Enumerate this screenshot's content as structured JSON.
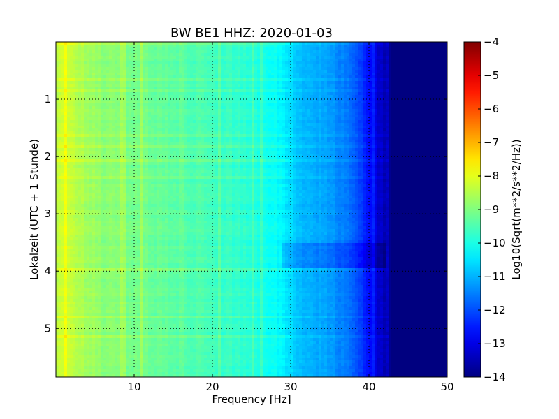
{
  "chart_data": {
    "type": "heatmap",
    "title": "BW BE1 HHZ: 2020-01-03",
    "xlabel": "Frequency [Hz]",
    "ylabel": "Lokalzeit (UTC + 1 Stunde)",
    "colorbar_label": "Log10(Sqrt(m**2/s**2/Hz))",
    "xlim": [
      0,
      50
    ],
    "ylim": [
      5.85,
      0
    ],
    "x_ticks": [
      10,
      20,
      30,
      40,
      50
    ],
    "y_ticks": [
      1,
      2,
      3,
      4,
      5
    ],
    "clim": [
      -14,
      -4
    ],
    "colorbar_ticks": [
      -14,
      -13,
      -12,
      -11,
      -10,
      -9,
      -8,
      -7,
      -6,
      -5,
      -4
    ],
    "colormap": "jet",
    "grid": true,
    "spectrum_profile": {
      "frequency": [
        0,
        1,
        2,
        5,
        10,
        15,
        20,
        25,
        29,
        30,
        31,
        35,
        38,
        40,
        41,
        42,
        43,
        50
      ],
      "log_psd": [
        -8.4,
        -8.2,
        -8.4,
        -8.8,
        -9.1,
        -9.3,
        -9.6,
        -9.9,
        -10.3,
        -10.6,
        -10.9,
        -11.2,
        -11.8,
        -12.6,
        -13.1,
        -13.5,
        -14,
        -14
      ]
    },
    "features": [
      {
        "time_range": [
          3.5,
          3.95
        ],
        "frequency_range": [
          29,
          42
        ],
        "delta_log_psd": -0.45
      }
    ]
  }
}
